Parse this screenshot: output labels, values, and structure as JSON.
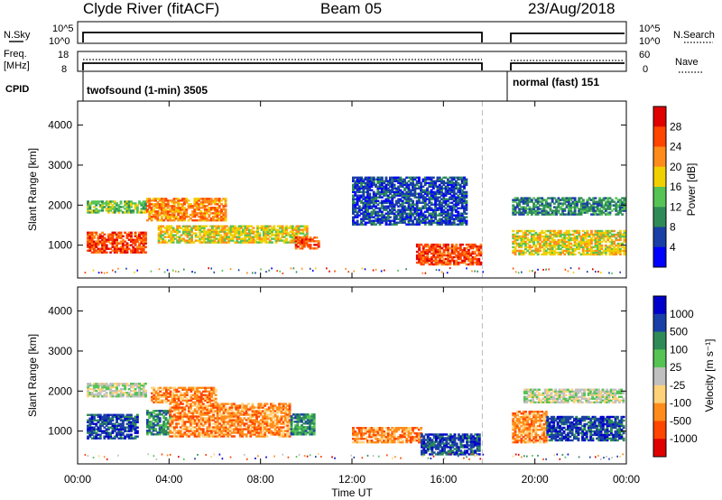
{
  "header": {
    "title": "Clyde River (fitACF)",
    "beam": "Beam 05",
    "date": "23/Aug/2018"
  },
  "left_labels": {
    "nsky": "N.Sky",
    "freq": "Freq.",
    "freq_unit": "[MHz]",
    "cpid": "CPID"
  },
  "right_labels": {
    "nsearch": "N.Search",
    "nave": "Nave"
  },
  "strip_ticks": {
    "noise_left": [
      "10^5",
      "10^0"
    ],
    "noise_right": [
      "10^5",
      "10^0"
    ],
    "freq_left": [
      "18",
      "8"
    ],
    "nave_right": [
      "60",
      "0"
    ]
  },
  "cpid_blocks": [
    {
      "label": "twofsound (1-min) 3505"
    },
    {
      "label": "normal (fast) 151"
    }
  ],
  "colors": {
    "power": [
      "#0000ff",
      "#1a3fa6",
      "#2e8b57",
      "#55c455",
      "#f0d000",
      "#ff8c1a",
      "#ff4500",
      "#e00000"
    ],
    "velocity": [
      "#e00000",
      "#ff4500",
      "#ff8c1a",
      "#ffd27a",
      "#c0c0c0",
      "#55c455",
      "#2e8b57",
      "#1a3fa6",
      "#0000cc"
    ]
  },
  "chart_data": [
    {
      "type": "heatmap",
      "panel": "power",
      "ylabel": "Slant Range [km]",
      "ylim": [
        180,
        4600
      ],
      "yticks": [
        "1000",
        "2000",
        "3000",
        "4000"
      ],
      "ytick_values": [
        1000,
        2000,
        3000,
        4000
      ],
      "xlim_hours": [
        0,
        24
      ],
      "colorbar": {
        "label": "Power [dB]",
        "range": [
          0,
          32
        ],
        "ticks": [
          "4",
          "8",
          "12",
          "16",
          "20",
          "24",
          "28"
        ]
      },
      "data_gap_hours": [
        17.7,
        18.9
      ],
      "echo_regions": [
        {
          "t": [
            0.4,
            3.0
          ],
          "r": [
            800,
            1300
          ],
          "level": 6
        },
        {
          "t": [
            0.4,
            3.0
          ],
          "r": [
            1800,
            2100
          ],
          "level": 3
        },
        {
          "t": [
            3.0,
            6.5
          ],
          "r": [
            1600,
            2150
          ],
          "level": 5
        },
        {
          "t": [
            3.5,
            10.0
          ],
          "r": [
            1050,
            1500
          ],
          "level": 4
        },
        {
          "t": [
            9.5,
            10.5
          ],
          "r": [
            900,
            1200
          ],
          "level": 6
        },
        {
          "t": [
            14.8,
            17.6
          ],
          "r": [
            500,
            1000
          ],
          "level": 6
        },
        {
          "t": [
            12.0,
            17.0
          ],
          "r": [
            1500,
            2700
          ],
          "level": 1
        },
        {
          "t": [
            19.0,
            23.9
          ],
          "r": [
            750,
            1350
          ],
          "level": 4
        },
        {
          "t": [
            19.0,
            23.9
          ],
          "r": [
            1750,
            2200
          ],
          "level": 2
        }
      ]
    },
    {
      "type": "heatmap",
      "panel": "velocity",
      "ylabel": "Slant Range [km]",
      "ylim": [
        180,
        4600
      ],
      "yticks": [
        "1000",
        "2000",
        "3000",
        "4000"
      ],
      "ytick_values": [
        1000,
        2000,
        3000,
        4000
      ],
      "xlim_hours": [
        0,
        24
      ],
      "colorbar": {
        "label": "Velocity [m s⁻¹]",
        "ticks": [
          "1000",
          "500",
          "100",
          "25",
          "-25",
          "-100",
          "-500",
          "-1000"
        ]
      },
      "data_gap_hours": [
        17.7,
        18.9
      ],
      "echo_regions": [
        {
          "t": [
            0.4,
            2.6
          ],
          "r": [
            800,
            1400
          ],
          "level": 7
        },
        {
          "t": [
            0.4,
            3.0
          ],
          "r": [
            1850,
            2200
          ],
          "level": 4
        },
        {
          "t": [
            3.0,
            4.0
          ],
          "r": [
            900,
            1500
          ],
          "level": 6
        },
        {
          "t": [
            3.2,
            6.0
          ],
          "r": [
            1700,
            2100
          ],
          "level": 2
        },
        {
          "t": [
            4.0,
            9.3
          ],
          "r": [
            850,
            1700
          ],
          "level": 2
        },
        {
          "t": [
            9.3,
            10.3
          ],
          "r": [
            900,
            1400
          ],
          "level": 6
        },
        {
          "t": [
            12.0,
            15.0
          ],
          "r": [
            700,
            1100
          ],
          "level": 2
        },
        {
          "t": [
            15.0,
            17.6
          ],
          "r": [
            400,
            900
          ],
          "level": 7
        },
        {
          "t": [
            19.0,
            20.5
          ],
          "r": [
            700,
            1500
          ],
          "level": 2
        },
        {
          "t": [
            19.5,
            23.9
          ],
          "r": [
            1700,
            2050
          ],
          "level": 4
        },
        {
          "t": [
            20.5,
            23.9
          ],
          "r": [
            750,
            1350
          ],
          "level": 7
        }
      ]
    }
  ],
  "x_axis": {
    "ticks": [
      "00:00",
      "04:00",
      "08:00",
      "12:00",
      "16:00",
      "20:00",
      "00:00"
    ],
    "tick_hours": [
      0,
      4,
      8,
      12,
      16,
      20,
      24
    ],
    "label": "Time UT"
  }
}
